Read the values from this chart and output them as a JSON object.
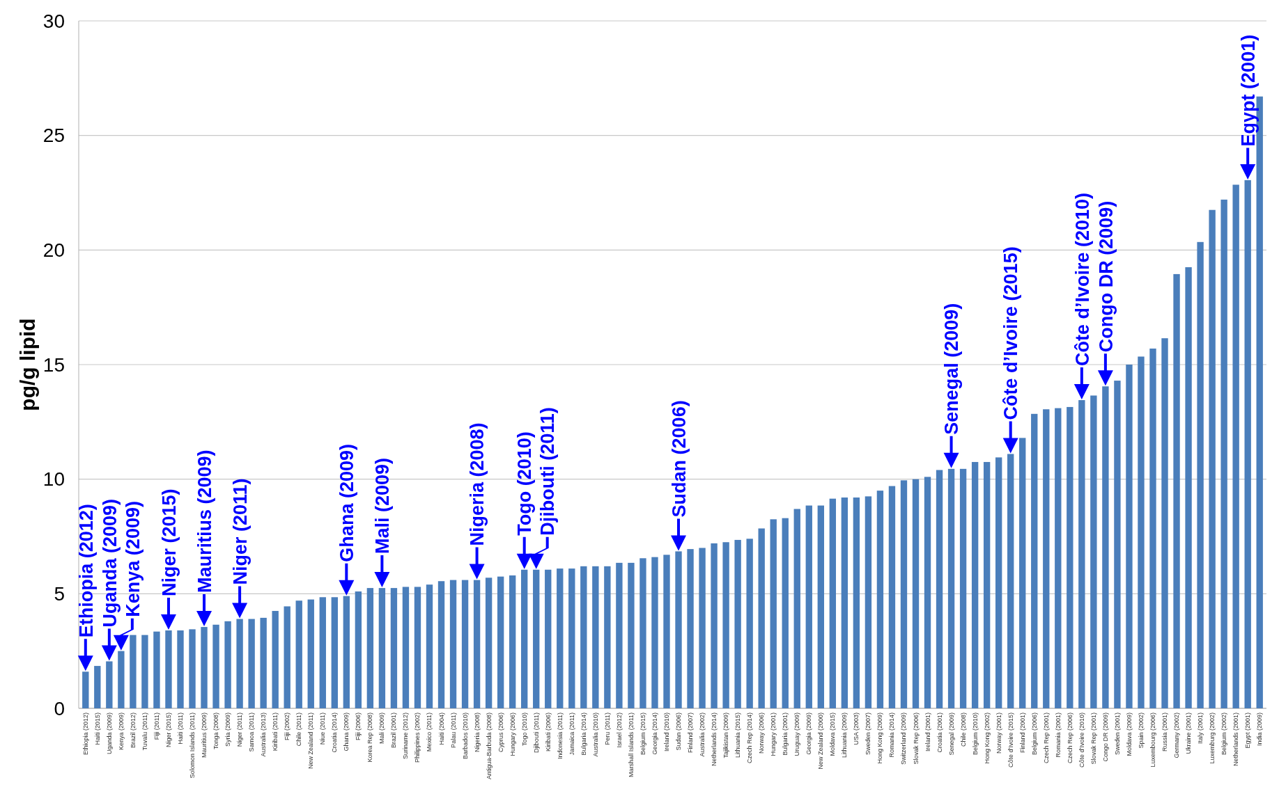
{
  "chart_data": {
    "type": "bar",
    "ylabel": "pg/g lipid",
    "color": "#4a7ebb",
    "ylim": [
      0,
      30
    ],
    "yticks": [
      0,
      5,
      10,
      15,
      20,
      25,
      30
    ],
    "grid": "y",
    "categories": [
      "Ethiopia (2012)",
      "Haiti (2015)",
      "Uganda (2009)",
      "Kenya (2009)",
      "Brazil (2012)",
      "Tuvalu (2011)",
      "Fiji (2011)",
      "Niger (2015)",
      "Haiti (2011)",
      "Solomon Islands (2011)",
      "Mauritius (2009)",
      "Tonga (2008)",
      "Syria (2009)",
      "Niger (2011)",
      "Samoa (2011)",
      "Australia (2013)",
      "Kiribati (2011)",
      "Fiji (2002)",
      "Chile (2011)",
      "New Zealand (2011)",
      "Niue (2011)",
      "Croatia (2014)",
      "Ghana (2009)",
      "Fiji (2006)",
      "Korea Rep (2008)",
      "Mali (2009)",
      "Brazil (2001)",
      "Suriname (2012)",
      "Philippines (2002)",
      "Mexico (2011)",
      "Haiti (2004)",
      "Palau (2011)",
      "Barbados (2010)",
      "Nigeria (2008)",
      "Antigua-Barbuda (2008)",
      "Cyprus (2006)",
      "Hungary (2006)",
      "Togo (2010)",
      "Djibouti (2011)",
      "Kiribati (2006)",
      "Indonesia (2011)",
      "Jamaica (2011)",
      "Bulgaria (2014)",
      "Australia (2010)",
      "Peru (2011)",
      "Israel (2012)",
      "Marshall Islands (2011)",
      "Belgium (2015)",
      "Georgia (2014)",
      "Ireland (2010)",
      "Sudan (2006)",
      "Finland (2007)",
      "Australia (2002)",
      "Netherlands (2014)",
      "Tajikistan (2009)",
      "Lithuania (2015)",
      "Czech Rep (2014)",
      "Norway (2006)",
      "Hungary (2001)",
      "Bulgaria (2001)",
      "Uruguay (2009)",
      "Georgia (2009)",
      "New Zealand (2000)",
      "Moldava (2015)",
      "Lithuania (2009)",
      "USA (2003)",
      "Sweden (2007)",
      "Hong Kong (2009)",
      "Romania (2014)",
      "Switzerland (2009)",
      "Slovak Rep (2006)",
      "Ireland (2001)",
      "Croatia (2001)",
      "Senegal (2009)",
      "Chile (2008)",
      "Belgium (2010)",
      "Hong Kong (2002)",
      "Norway (2001)",
      "Côte d’Ivoire (2015)",
      "Finland (2001)",
      "Belgium (2006)",
      "Czech Rep (2001)",
      "Romania (2001)",
      "Czech Rep (2006)",
      "Côte d’Ivoire (2010)",
      "Slovak Rep (2001)",
      "Congo DR (2009)",
      "Sweden (2001)",
      "Moldava (2009)",
      "Spain (2002)",
      "Luxembourg (2006)",
      "Russia (2001)",
      "Germany (2002)",
      "Ukraine (2001)",
      "Italy (2001)",
      "Luxemburg (2002)",
      "Belgium (2002)",
      "Netherlands (2001)",
      "Egypt (2001)",
      "India (2009)"
    ],
    "values": [
      1.6,
      1.85,
      2.05,
      2.5,
      3.2,
      3.2,
      3.35,
      3.4,
      3.4,
      3.45,
      3.55,
      3.65,
      3.8,
      3.9,
      3.9,
      3.95,
      4.25,
      4.45,
      4.7,
      4.75,
      4.85,
      4.85,
      4.9,
      5.1,
      5.25,
      5.25,
      5.25,
      5.3,
      5.3,
      5.4,
      5.55,
      5.6,
      5.6,
      5.6,
      5.7,
      5.75,
      5.8,
      6.05,
      6.05,
      6.05,
      6.1,
      6.1,
      6.2,
      6.2,
      6.2,
      6.35,
      6.35,
      6.55,
      6.6,
      6.7,
      6.85,
      6.95,
      7.0,
      7.2,
      7.25,
      7.35,
      7.4,
      7.85,
      8.25,
      8.3,
      8.7,
      8.85,
      8.85,
      9.15,
      9.2,
      9.2,
      9.25,
      9.5,
      9.7,
      9.95,
      10.0,
      10.1,
      10.4,
      10.45,
      10.45,
      10.75,
      10.75,
      10.95,
      11.1,
      11.8,
      12.85,
      13.05,
      13.1,
      13.15,
      13.45,
      13.65,
      14.05,
      14.3,
      15.0,
      15.35,
      15.7,
      16.15,
      18.95,
      19.25,
      20.35,
      21.75,
      22.2,
      22.85,
      23.05,
      26.7
    ],
    "annotations": [
      {
        "text": "Ethiopia  (2012)",
        "x": "Ethiopia (2012)",
        "y": 1.6
      },
      {
        "text": "Uganda (2009)",
        "x": "Uganda (2009)",
        "y": 2.05
      },
      {
        "text": "Kenya (2009)",
        "x": "Kenya (2009)",
        "y": 2.5
      },
      {
        "text": "Niger (2015)",
        "x": "Niger (2015)",
        "y": 3.4
      },
      {
        "text": "Mauritius (2009)",
        "x": "Mauritius (2009)",
        "y": 3.55
      },
      {
        "text": "Niger (2011)",
        "x": "Niger (2011)",
        "y": 3.9
      },
      {
        "text": "Ghana (2009)",
        "x": "Ghana (2009)",
        "y": 4.9
      },
      {
        "text": "Mali (2009)",
        "x": "Mali (2009)",
        "y": 5.25
      },
      {
        "text": "Nigeria (2008)",
        "x": "Nigeria (2008)",
        "y": 5.6
      },
      {
        "text": "Togo (2010)",
        "x": "Togo (2010)",
        "y": 6.05
      },
      {
        "text": "Djibouti (2011)",
        "x": "Djibouti (2011)",
        "y": 6.05
      },
      {
        "text": "Sudan (2006)",
        "x": "Sudan (2006)",
        "y": 6.85
      },
      {
        "text": "Senegal (2009)",
        "x": "Senegal (2009)",
        "y": 10.45
      },
      {
        "text": "Côte d’Ivoire (2015)",
        "x": "Côte d’Ivoire (2015)",
        "y": 11.1
      },
      {
        "text": "Côte d’Ivoire (2010)",
        "x": "Côte d’Ivoire (2010)",
        "y": 13.45
      },
      {
        "text": "Congo DR (2009)",
        "x": "Congo DR (2009)",
        "y": 14.05
      },
      {
        "text": "Egypt (2001)",
        "x": "Egypt (2001)",
        "y": 23.05
      }
    ]
  }
}
